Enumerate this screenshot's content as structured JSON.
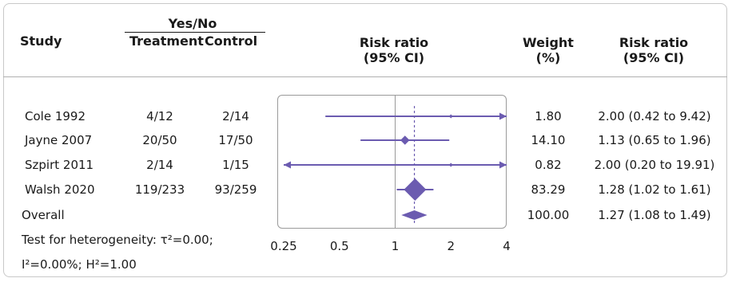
{
  "header": {
    "study": "Study",
    "group_title": "Yes/No",
    "treatment": "Treatment",
    "control": "Control",
    "risk_ratio_col": "Risk ratio",
    "risk_ratio_col_ci": "(95% CI)",
    "weight_col": "Weight",
    "weight_col_unit": "(%)",
    "rr_text_col": "Risk ratio",
    "rr_text_col_ci": "(95% CI)"
  },
  "rows": [
    {
      "study": "Cole 1992",
      "treatment": "4/12",
      "control": "2/14",
      "weight": "1.80",
      "rr_text": "2.00 (0.42 to 9.42)"
    },
    {
      "study": "Jayne 2007",
      "treatment": "20/50",
      "control": "17/50",
      "weight": "14.10",
      "rr_text": "1.13 (0.65 to 1.96)"
    },
    {
      "study": "Szpirt 2011",
      "treatment": "2/14",
      "control": "1/15",
      "weight": "0.82",
      "rr_text": "2.00 (0.20 to 19.91)"
    },
    {
      "study": "Walsh 2020",
      "treatment": "119/233",
      "control": "93/259",
      "weight": "83.29",
      "rr_text": "1.28 (1.02 to 1.61)"
    }
  ],
  "overall": {
    "label": "Overall",
    "weight": "100.00",
    "rr_text": "1.27 (1.08 to 1.49)"
  },
  "footer": {
    "heterogeneity_line1": "Test for heterogeneity: τ²=0.00;",
    "heterogeneity_line2": "I²=0.00%; H²=1.00"
  },
  "colors": {
    "accent": "#6b5bb0",
    "text": "#1a1a1a",
    "axis": "#9a9a9a"
  },
  "chart_data": {
    "type": "forest",
    "scale": "log",
    "xlim": [
      0.25,
      4
    ],
    "x_ticks": [
      0.25,
      0.5,
      1,
      2,
      4
    ],
    "x_tick_labels": [
      "0.25",
      "0.5",
      "1",
      "2",
      "4"
    ],
    "reference_line": 1,
    "studies": [
      {
        "name": "Cole 1992",
        "rr": 2.0,
        "lo": 0.42,
        "hi": 9.42,
        "weight": 1.8
      },
      {
        "name": "Jayne 2007",
        "rr": 1.13,
        "lo": 0.65,
        "hi": 1.96,
        "weight": 14.1
      },
      {
        "name": "Szpirt 2011",
        "rr": 2.0,
        "lo": 0.2,
        "hi": 19.91,
        "weight": 0.82
      },
      {
        "name": "Walsh 2020",
        "rr": 1.28,
        "lo": 1.02,
        "hi": 1.61,
        "weight": 83.29
      }
    ],
    "overall": {
      "rr": 1.27,
      "lo": 1.08,
      "hi": 1.49
    }
  }
}
